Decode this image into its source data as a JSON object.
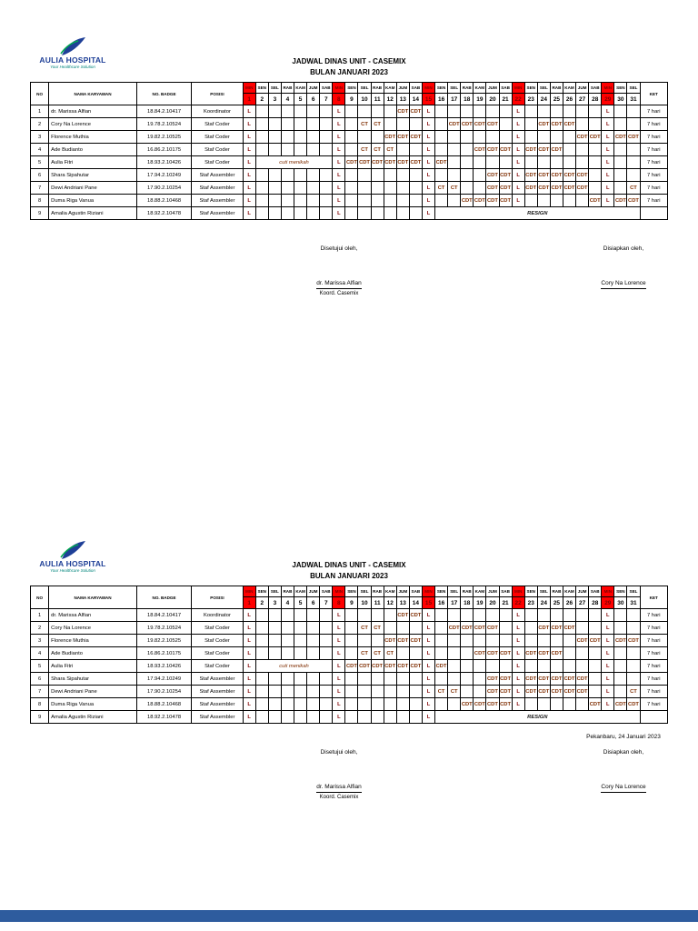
{
  "document": {
    "title_line1": "JADWAL DINAS UNIT - CASEMIX",
    "title_line2": "BULAN JANUARI 2023",
    "date_place_line": "Pekanbaru, 24 Januari 2023"
  },
  "logo": {
    "name": "AULIA HOSPITAL",
    "tagline": "Your Healthcare Solution",
    "icon": "leaf-swoosh-icon"
  },
  "colors": {
    "sunday_red": "#FF0000",
    "sunday_text": "#7F0000",
    "duty_tan": "#F2C063",
    "duty_text": "#7F2D00",
    "cuti_yellow": "#FFD966",
    "resign_gray": "#BFBFBF",
    "footer_blue": "#2E5C9E",
    "logo_blue": "#1E3F97",
    "logo_teal": "#00857C",
    "logo_green": "#00A651"
  },
  "table": {
    "headers": {
      "no": "NO",
      "nama": "NAMA KARYAWAN",
      "badge": "NO. BADGE",
      "posisi": "POSISI",
      "ket": "KET"
    },
    "day_names": [
      "MIN",
      "SEN",
      "SEL",
      "RAB",
      "KAM",
      "JUM",
      "SAB",
      "MIN",
      "SEN",
      "SEL",
      "RAB",
      "KAM",
      "JUM",
      "SAB",
      "MIN",
      "SEN",
      "SEL",
      "RAB",
      "KAM",
      "JUM",
      "SAB",
      "MIN",
      "SEN",
      "SEL",
      "RAB",
      "KAM",
      "JUM",
      "SAB",
      "MIN",
      "SEN",
      "SEL"
    ],
    "day_numbers": [
      1,
      2,
      3,
      4,
      5,
      6,
      7,
      8,
      9,
      10,
      11,
      12,
      13,
      14,
      15,
      16,
      17,
      18,
      19,
      20,
      21,
      22,
      23,
      24,
      25,
      26,
      27,
      28,
      29,
      30,
      31
    ],
    "sundays": [
      1,
      8,
      15,
      22,
      29
    ],
    "rows": [
      {
        "no": "1",
        "nama": "dr. Marissa Alfian",
        "badge": "18.84.2.10417",
        "posisi": "Koordinator",
        "ket": "7 hari",
        "days": {
          "1": "L",
          "8": "L",
          "13": "CDT",
          "14": "CDT",
          "15": "L",
          "22": "L",
          "29": "L"
        }
      },
      {
        "no": "2",
        "nama": "Cory Na Lorence",
        "badge": "19.78.2.10524",
        "posisi": "Staf Coder",
        "ket": "7 hari",
        "days": {
          "1": "L",
          "8": "L",
          "10": "CT",
          "11": "CT",
          "15": "L",
          "17": "CDT",
          "18": "CDT",
          "19": "CDT",
          "20": "CDT",
          "22": "L",
          "24": "CDT",
          "25": "CDT",
          "26": "CDT",
          "29": "L"
        }
      },
      {
        "no": "3",
        "nama": "Florence Muthia",
        "badge": "19.82.2.10525",
        "posisi": "Staf Coder",
        "ket": "7 hari",
        "days": {
          "1": "L",
          "8": "L",
          "12": "CDT",
          "13": "CDT",
          "14": "CDT",
          "15": "L",
          "22": "L",
          "27": "CDT",
          "28": "CDT",
          "29": "L",
          "30": "CDT",
          "31": "CDT"
        }
      },
      {
        "no": "4",
        "nama": "Ade Budianto",
        "badge": "16.86.2.10175",
        "posisi": "Staf Coder",
        "ket": "7 hari",
        "days": {
          "1": "L",
          "8": "L",
          "10": "CT",
          "11": "CT",
          "12": "CT",
          "15": "L",
          "19": "CDT",
          "20": "CDT",
          "21": "CDT",
          "22": "L",
          "23": "CDT",
          "24": "CDT",
          "25": "CDT",
          "29": "L"
        }
      },
      {
        "no": "5",
        "nama": "Aulia Fitri",
        "badge": "18.93.2.10426",
        "posisi": "Staf Coder",
        "ket": "7 hari",
        "span": {
          "start": 2,
          "end": 7,
          "text": "cuti menikah",
          "type": "cuti"
        },
        "days": {
          "1": "L",
          "8": "L",
          "9": "CDT",
          "10": "CDT",
          "11": "CDT",
          "12": "CDT",
          "13": "CDT",
          "14": "CDT",
          "15": "L",
          "16": "CDT",
          "22": "L",
          "29": "L"
        }
      },
      {
        "no": "6",
        "nama": "Shara Sipahutar",
        "badge": "17.94.2.10249",
        "posisi": "Staf Assembler",
        "ket": "7 hari",
        "days": {
          "1": "L",
          "8": "L",
          "15": "L",
          "20": "CDT",
          "21": "CDT",
          "22": "L",
          "23": "CDT",
          "24": "CDT",
          "25": "CDT",
          "26": "CDT",
          "27": "CDT",
          "29": "L"
        }
      },
      {
        "no": "7",
        "nama": "Dewi Andriani Pane",
        "badge": "17.90.2.10254",
        "posisi": "Staf Assembler",
        "ket": "7 hari",
        "days": {
          "1": "L",
          "8": "L",
          "15": "L",
          "16": "CT",
          "17": "CT",
          "20": "CDT",
          "21": "CDT",
          "22": "L",
          "23": "CDT",
          "24": "CDT",
          "25": "CDT",
          "26": "CDT",
          "27": "CDT",
          "29": "L",
          "31": "CT"
        }
      },
      {
        "no": "8",
        "nama": "Duma Riga Vanua",
        "badge": "18.88.2.10468",
        "posisi": "Staf Assembler",
        "ket": "7 hari",
        "days": {
          "1": "L",
          "8": "L",
          "15": "L",
          "18": "CDT",
          "19": "CDT",
          "20": "CDT",
          "21": "CDT",
          "22": "L",
          "28": "CDT",
          "29": "L",
          "30": "CDT",
          "31": "CDT"
        }
      },
      {
        "no": "9",
        "nama": "Amalia Agustin Riziani",
        "badge": "18.92.2.10478",
        "posisi": "Staf Assembler",
        "ket": "",
        "ket_gray": true,
        "span": {
          "start": 16,
          "end": 31,
          "text": "RESIGN",
          "type": "resign"
        },
        "days": {
          "1": "L",
          "8": "L",
          "15": "L"
        }
      }
    ]
  },
  "signatures": {
    "approved_label": "Disetujui oleh,",
    "approved_name": "dr. Marissa Alfian",
    "approved_role": "Koord. Casemix",
    "prepared_label": "Disiapkan oleh,",
    "prepared_name": "Cory Na Lorence"
  },
  "blocks": [
    {
      "show_date": false
    },
    {
      "show_date": true
    }
  ]
}
